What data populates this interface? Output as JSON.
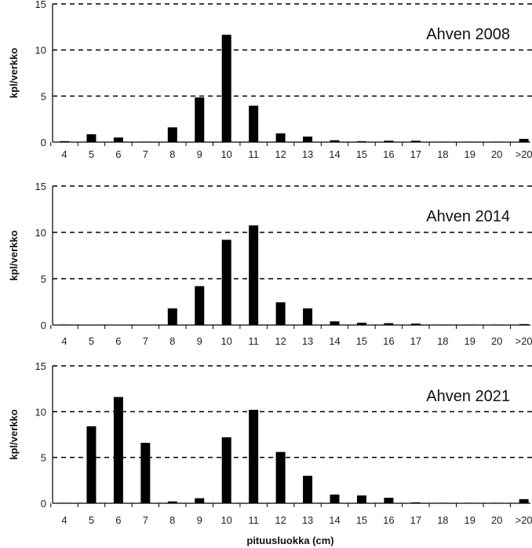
{
  "chart_data": [
    {
      "type": "bar",
      "title": "Ahven 2008",
      "ylabel": "kpl/verkko",
      "xlabel": "",
      "categories": [
        "4",
        "5",
        "6",
        "7",
        "8",
        "9",
        "10",
        "11",
        "12",
        "13",
        "14",
        "15",
        "16",
        "17",
        "18",
        "19",
        "20",
        ">20"
      ],
      "values": [
        0.1,
        0.85,
        0.5,
        0.05,
        1.6,
        4.85,
        11.65,
        3.95,
        0.95,
        0.6,
        0.2,
        0.1,
        0.15,
        0.15,
        0.05,
        0.05,
        0.05,
        0.35
      ],
      "ylim": [
        0,
        15
      ],
      "yticks": [
        "0",
        "5",
        "10",
        "15"
      ],
      "grid": "dashed horizontal at 5, 10, 15"
    },
    {
      "type": "bar",
      "title": "Ahven 2014",
      "ylabel": "kpl/verkko",
      "xlabel": "",
      "categories": [
        "4",
        "5",
        "6",
        "7",
        "8",
        "9",
        "10",
        "11",
        "12",
        "13",
        "14",
        "15",
        "16",
        "17",
        "18",
        "19",
        "20",
        ">20"
      ],
      "values": [
        0.05,
        0,
        0,
        0,
        1.8,
        4.2,
        9.2,
        10.75,
        2.45,
        1.8,
        0.4,
        0.25,
        0.2,
        0.15,
        0.05,
        0.05,
        0.05,
        0.1
      ],
      "ylim": [
        0,
        15
      ],
      "yticks": [
        "0",
        "5",
        "10",
        "15"
      ],
      "grid": "dashed horizontal at 5, 10, 15"
    },
    {
      "type": "bar",
      "title": "Ahven 2021",
      "ylabel": "kpl/verkko",
      "xlabel": "pituusluokka (cm)",
      "categories": [
        "4",
        "5",
        "6",
        "7",
        "8",
        "9",
        "10",
        "11",
        "12",
        "13",
        "14",
        "15",
        "16",
        "17",
        "18",
        "19",
        "20",
        ">20"
      ],
      "values": [
        0.05,
        8.4,
        11.6,
        6.6,
        0.2,
        0.55,
        7.2,
        10.2,
        5.6,
        3.0,
        0.95,
        0.85,
        0.6,
        0.1,
        0.05,
        0.05,
        0.05,
        0.45
      ],
      "ylim": [
        0,
        15
      ],
      "yticks": [
        "0",
        "5",
        "10",
        "15"
      ],
      "grid": "dashed horizontal at 5, 10, 15"
    }
  ]
}
